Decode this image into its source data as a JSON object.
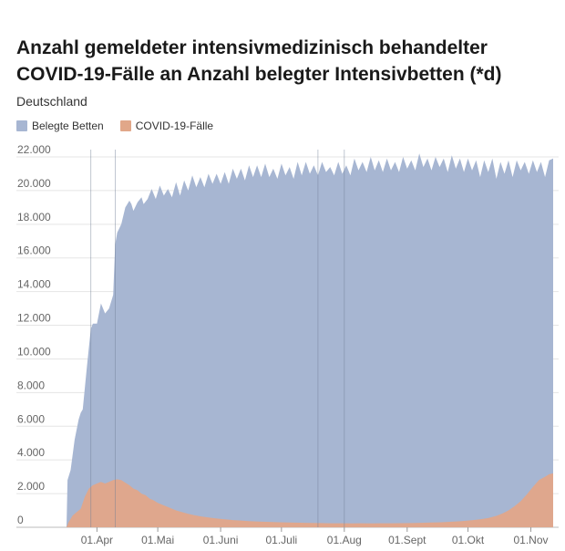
{
  "colors": {
    "beds": "#a7b6d2",
    "covid": "#e1a789",
    "grid": "#e5e5e5"
  },
  "chart_data": {
    "type": "area",
    "title": "Anzahl gemeldeter intensivmedizinisch behandelter COVID-19-Fälle an Anzahl belegter Intensivbetten (*d)",
    "subtitle": "Deutschland",
    "ylim": [
      0,
      22000
    ],
    "xlim": [
      0,
      240
    ],
    "y_ticks": [
      0,
      2000,
      4000,
      6000,
      8000,
      10000,
      12000,
      14000,
      16000,
      18000,
      20000,
      22000
    ],
    "y_tick_labels": [
      "0",
      "2.000",
      "4.000",
      "6.000",
      "8.000",
      "10.000",
      "12.000",
      "14.000",
      "16.000",
      "18.000",
      "20.000",
      "22.000"
    ],
    "x_ticks": [
      {
        "x": 15,
        "label": "01.Apr"
      },
      {
        "x": 45,
        "label": "01.Mai"
      },
      {
        "x": 76,
        "label": "01.Juni"
      },
      {
        "x": 106,
        "label": "01.Juli"
      },
      {
        "x": 137,
        "label": "01.Aug"
      },
      {
        "x": 168,
        "label": "01.Sept"
      },
      {
        "x": 198,
        "label": "01.Okt"
      },
      {
        "x": 229,
        "label": "01.Nov"
      }
    ],
    "vlines": [
      12,
      24,
      124,
      137
    ],
    "series": [
      {
        "name": "Belegte Betten",
        "points": [
          [
            0,
            0
          ],
          [
            0.5,
            2800
          ],
          [
            2,
            3400
          ],
          [
            4,
            5200
          ],
          [
            6,
            6400
          ],
          [
            7,
            6800
          ],
          [
            8,
            7000
          ],
          [
            10,
            9500
          ],
          [
            12,
            11800
          ],
          [
            13,
            12100
          ],
          [
            15,
            12100
          ],
          [
            17,
            13300
          ],
          [
            19,
            12700
          ],
          [
            21,
            13000
          ],
          [
            23,
            13800
          ],
          [
            24,
            16800
          ],
          [
            25,
            17500
          ],
          [
            27,
            18000
          ],
          [
            29,
            19000
          ],
          [
            31,
            19400
          ],
          [
            32,
            19200
          ],
          [
            33,
            18800
          ],
          [
            35,
            19300
          ],
          [
            37,
            19600
          ],
          [
            38,
            19200
          ],
          [
            40,
            19500
          ],
          [
            42,
            20100
          ],
          [
            44,
            19500
          ],
          [
            46,
            20300
          ],
          [
            48,
            19700
          ],
          [
            50,
            20100
          ],
          [
            52,
            19600
          ],
          [
            54,
            20500
          ],
          [
            56,
            19700
          ],
          [
            58,
            20600
          ],
          [
            60,
            20000
          ],
          [
            62,
            20900
          ],
          [
            64,
            20200
          ],
          [
            66,
            20800
          ],
          [
            68,
            20200
          ],
          [
            70,
            21000
          ],
          [
            72,
            20400
          ],
          [
            74,
            21000
          ],
          [
            76,
            20400
          ],
          [
            78,
            21100
          ],
          [
            80,
            20400
          ],
          [
            82,
            21300
          ],
          [
            84,
            20700
          ],
          [
            86,
            21300
          ],
          [
            88,
            20600
          ],
          [
            90,
            21500
          ],
          [
            92,
            20800
          ],
          [
            94,
            21500
          ],
          [
            96,
            20800
          ],
          [
            98,
            21600
          ],
          [
            100,
            20800
          ],
          [
            102,
            21300
          ],
          [
            104,
            20700
          ],
          [
            106,
            21600
          ],
          [
            108,
            20900
          ],
          [
            110,
            21400
          ],
          [
            112,
            20700
          ],
          [
            114,
            21700
          ],
          [
            116,
            20900
          ],
          [
            118,
            21700
          ],
          [
            120,
            21000
          ],
          [
            122,
            21500
          ],
          [
            124,
            20900
          ],
          [
            126,
            21700
          ],
          [
            128,
            21100
          ],
          [
            130,
            21400
          ],
          [
            132,
            20900
          ],
          [
            134,
            21700
          ],
          [
            136,
            21000
          ],
          [
            138,
            21500
          ],
          [
            140,
            20900
          ],
          [
            142,
            21900
          ],
          [
            144,
            21200
          ],
          [
            146,
            21700
          ],
          [
            148,
            21100
          ],
          [
            150,
            22000
          ],
          [
            152,
            21200
          ],
          [
            154,
            21800
          ],
          [
            156,
            21100
          ],
          [
            158,
            21900
          ],
          [
            160,
            21200
          ],
          [
            162,
            21700
          ],
          [
            164,
            21100
          ],
          [
            166,
            22000
          ],
          [
            168,
            21300
          ],
          [
            170,
            21800
          ],
          [
            172,
            21200
          ],
          [
            174,
            22200
          ],
          [
            176,
            21400
          ],
          [
            178,
            21900
          ],
          [
            180,
            21200
          ],
          [
            182,
            22000
          ],
          [
            184,
            21400
          ],
          [
            186,
            21900
          ],
          [
            188,
            21100
          ],
          [
            190,
            22100
          ],
          [
            192,
            21300
          ],
          [
            194,
            21900
          ],
          [
            196,
            21100
          ],
          [
            198,
            21900
          ],
          [
            200,
            21200
          ],
          [
            202,
            21800
          ],
          [
            204,
            20800
          ],
          [
            206,
            21800
          ],
          [
            208,
            21100
          ],
          [
            210,
            21900
          ],
          [
            212,
            20700
          ],
          [
            214,
            21700
          ],
          [
            216,
            21000
          ],
          [
            218,
            21800
          ],
          [
            220,
            20800
          ],
          [
            222,
            21800
          ],
          [
            224,
            21200
          ],
          [
            226,
            21700
          ],
          [
            228,
            21000
          ],
          [
            230,
            21800
          ],
          [
            232,
            21100
          ],
          [
            234,
            21700
          ],
          [
            236,
            20800
          ],
          [
            238,
            21800
          ],
          [
            240,
            21900
          ]
        ]
      },
      {
        "name": "COVID-19-Fälle",
        "points": [
          [
            0,
            0
          ],
          [
            1,
            300
          ],
          [
            3,
            700
          ],
          [
            5,
            900
          ],
          [
            7,
            1100
          ],
          [
            9,
            1800
          ],
          [
            11,
            2300
          ],
          [
            13,
            2500
          ],
          [
            15,
            2600
          ],
          [
            17,
            2700
          ],
          [
            19,
            2600
          ],
          [
            21,
            2700
          ],
          [
            23,
            2800
          ],
          [
            25,
            2850
          ],
          [
            27,
            2800
          ],
          [
            29,
            2650
          ],
          [
            31,
            2500
          ],
          [
            33,
            2300
          ],
          [
            35,
            2200
          ],
          [
            37,
            2000
          ],
          [
            39,
            1900
          ],
          [
            41,
            1700
          ],
          [
            43,
            1600
          ],
          [
            45,
            1450
          ],
          [
            48,
            1300
          ],
          [
            51,
            1150
          ],
          [
            54,
            1000
          ],
          [
            57,
            900
          ],
          [
            60,
            800
          ],
          [
            63,
            720
          ],
          [
            66,
            650
          ],
          [
            70,
            580
          ],
          [
            74,
            520
          ],
          [
            78,
            470
          ],
          [
            82,
            430
          ],
          [
            86,
            400
          ],
          [
            90,
            370
          ],
          [
            95,
            340
          ],
          [
            100,
            320
          ],
          [
            105,
            300
          ],
          [
            110,
            280
          ],
          [
            115,
            270
          ],
          [
            120,
            260
          ],
          [
            125,
            250
          ],
          [
            130,
            240
          ],
          [
            135,
            240
          ],
          [
            140,
            235
          ],
          [
            145,
            240
          ],
          [
            150,
            235
          ],
          [
            155,
            240
          ],
          [
            160,
            240
          ],
          [
            165,
            245
          ],
          [
            170,
            250
          ],
          [
            175,
            265
          ],
          [
            180,
            280
          ],
          [
            185,
            300
          ],
          [
            190,
            330
          ],
          [
            195,
            370
          ],
          [
            200,
            420
          ],
          [
            204,
            470
          ],
          [
            208,
            550
          ],
          [
            212,
            680
          ],
          [
            215,
            820
          ],
          [
            218,
            1000
          ],
          [
            221,
            1250
          ],
          [
            224,
            1550
          ],
          [
            227,
            1950
          ],
          [
            230,
            2400
          ],
          [
            233,
            2800
          ],
          [
            236,
            3000
          ],
          [
            238,
            3150
          ],
          [
            240,
            3200
          ]
        ]
      }
    ]
  }
}
